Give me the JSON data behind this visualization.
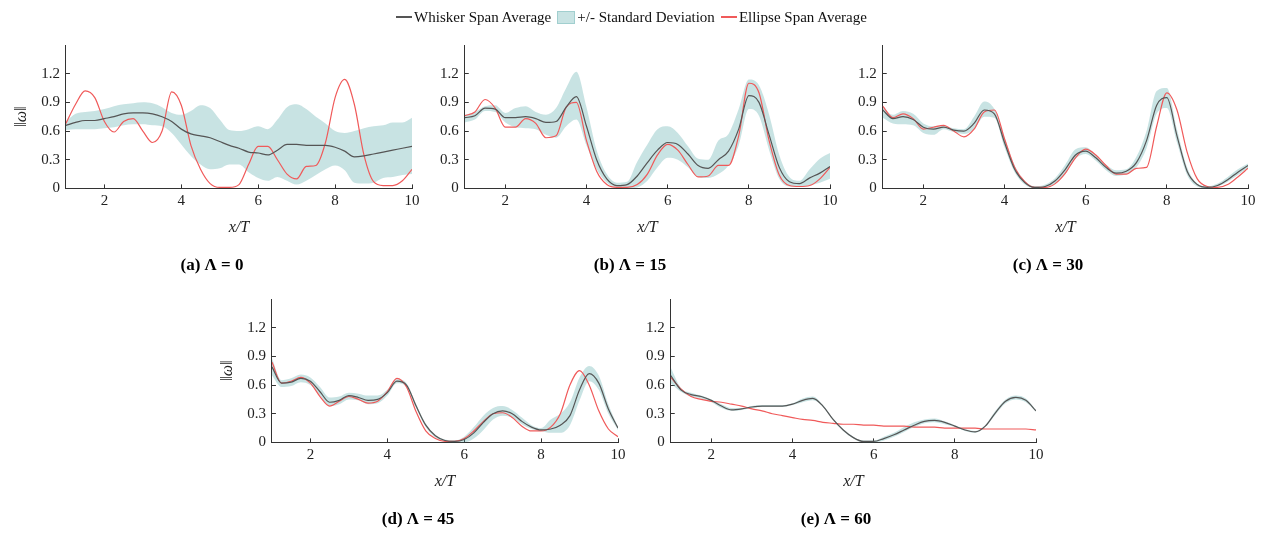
{
  "chart_data": [
    {
      "type": "line",
      "title": "(a) Λ = 0",
      "xlabel": "x/T",
      "ylabel": "‖ω‖",
      "legend": "top",
      "xlim": [
        1,
        10
      ],
      "ylim": [
        0,
        1.5
      ],
      "xticks": [
        2,
        4,
        6,
        8,
        10
      ],
      "yticks": [
        0,
        0.3,
        0.6,
        0.9,
        1.2
      ],
      "x": [
        1,
        1.25,
        1.5,
        1.75,
        2,
        2.25,
        2.5,
        2.75,
        3,
        3.25,
        3.5,
        3.75,
        4,
        4.25,
        4.5,
        4.75,
        5,
        5.25,
        5.5,
        5.75,
        6,
        6.25,
        6.5,
        6.75,
        7,
        7.25,
        7.5,
        7.75,
        8,
        8.25,
        8.5,
        8.75,
        9,
        9.25,
        9.5,
        9.75,
        10
      ],
      "series": [
        {
          "name": "Whisker Span Average",
          "type": "line",
          "color": "#555555",
          "values": [
            0.66,
            0.69,
            0.71,
            0.71,
            0.73,
            0.75,
            0.78,
            0.79,
            0.79,
            0.78,
            0.75,
            0.7,
            0.62,
            0.57,
            0.55,
            0.53,
            0.49,
            0.45,
            0.42,
            0.38,
            0.37,
            0.35,
            0.4,
            0.46,
            0.46,
            0.45,
            0.45,
            0.45,
            0.43,
            0.39,
            0.33,
            0.34,
            0.36,
            0.38,
            0.4,
            0.42,
            0.44
          ],
          "lower": [
            0.61,
            0.62,
            0.62,
            0.62,
            0.63,
            0.64,
            0.66,
            0.67,
            0.67,
            0.66,
            0.65,
            0.58,
            0.46,
            0.34,
            0.25,
            0.2,
            0.21,
            0.25,
            0.25,
            0.17,
            0.11,
            0.08,
            0.12,
            0.08,
            0.04,
            0.08,
            0.14,
            0.2,
            0.24,
            0.19,
            0.06,
            0.05,
            0.06,
            0.11,
            0.12,
            0.14,
            0.15
          ],
          "upper": [
            0.7,
            0.78,
            0.8,
            0.81,
            0.83,
            0.86,
            0.88,
            0.89,
            0.9,
            0.89,
            0.85,
            0.79,
            0.77,
            0.81,
            0.87,
            0.84,
            0.72,
            0.61,
            0.6,
            0.62,
            0.65,
            0.62,
            0.72,
            0.85,
            0.88,
            0.83,
            0.75,
            0.68,
            0.6,
            0.58,
            0.6,
            0.63,
            0.65,
            0.66,
            0.69,
            0.69,
            0.74
          ]
        },
        {
          "name": "+/- Standard Deviation",
          "type": "area",
          "color": "#4aa3a3",
          "values": [
            null,
            null,
            null,
            null,
            null,
            null,
            null,
            null,
            null,
            null,
            null,
            null,
            null,
            null,
            null,
            null,
            null,
            null,
            null,
            null,
            null,
            null,
            null,
            null,
            null,
            null,
            null,
            null,
            null,
            null,
            null,
            null,
            null,
            null,
            null,
            null,
            null
          ]
        },
        {
          "name": "Ellipse Span Average",
          "type": "line",
          "color": "#f05a5a",
          "values": [
            0.68,
            0.88,
            1.02,
            0.95,
            0.7,
            0.59,
            0.7,
            0.73,
            0.6,
            0.48,
            0.6,
            1.01,
            0.87,
            0.45,
            0.2,
            0.05,
            0.01,
            0.01,
            0.04,
            0.25,
            0.44,
            0.44,
            0.3,
            0.15,
            0.1,
            0.23,
            0.24,
            0.48,
            0.95,
            1.14,
            0.88,
            0.35,
            0.07,
            0.03,
            0.03,
            0.08,
            0.2
          ]
        }
      ]
    },
    {
      "type": "line",
      "title": "(b) Λ = 15",
      "xlabel": "x/T",
      "xlim": [
        1,
        10
      ],
      "ylim": [
        0,
        1.5
      ],
      "xticks": [
        2,
        4,
        6,
        8,
        10
      ],
      "yticks": [
        0,
        0.3,
        0.6,
        0.9,
        1.2
      ],
      "x": [
        1,
        1.25,
        1.5,
        1.75,
        2,
        2.25,
        2.5,
        2.75,
        3,
        3.25,
        3.5,
        3.75,
        4,
        4.25,
        4.5,
        4.75,
        5,
        5.25,
        5.5,
        5.75,
        6,
        6.25,
        6.5,
        6.75,
        7,
        7.25,
        7.5,
        7.75,
        8,
        8.25,
        8.5,
        8.75,
        9,
        9.25,
        9.5,
        9.75,
        10
      ],
      "series": [
        {
          "type": "line",
          "color": "#555555",
          "values": [
            0.74,
            0.76,
            0.84,
            0.83,
            0.74,
            0.74,
            0.75,
            0.73,
            0.69,
            0.7,
            0.85,
            0.96,
            0.65,
            0.3,
            0.1,
            0.03,
            0.04,
            0.13,
            0.27,
            0.4,
            0.48,
            0.46,
            0.36,
            0.24,
            0.21,
            0.3,
            0.39,
            0.62,
            0.97,
            0.9,
            0.56,
            0.22,
            0.07,
            0.05,
            0.11,
            0.16,
            0.23
          ],
          "lower": [
            0.69,
            0.72,
            0.81,
            0.8,
            0.69,
            0.64,
            0.63,
            0.62,
            0.56,
            0.53,
            0.65,
            0.72,
            0.45,
            0.2,
            0.06,
            0.01,
            0.0,
            0.01,
            0.08,
            0.22,
            0.32,
            0.3,
            0.22,
            0.12,
            0.11,
            0.15,
            0.24,
            0.45,
            0.83,
            0.76,
            0.4,
            0.1,
            0.02,
            0.02,
            0.03,
            0.06,
            0.1
          ],
          "upper": [
            0.77,
            0.8,
            0.86,
            0.87,
            0.79,
            0.84,
            0.86,
            0.8,
            0.77,
            0.84,
            1.05,
            1.22,
            0.85,
            0.4,
            0.15,
            0.06,
            0.07,
            0.28,
            0.46,
            0.62,
            0.65,
            0.58,
            0.44,
            0.31,
            0.3,
            0.5,
            0.57,
            0.83,
            1.14,
            1.08,
            0.77,
            0.35,
            0.12,
            0.08,
            0.2,
            0.31,
            0.37
          ]
        },
        {
          "type": "area",
          "color": "#4aa3a3",
          "values": [
            null,
            null,
            null,
            null,
            null,
            null,
            null,
            null,
            null,
            null,
            null,
            null,
            null,
            null,
            null,
            null,
            null,
            null,
            null,
            null,
            null,
            null,
            null,
            null,
            null,
            null,
            null,
            null,
            null,
            null,
            null,
            null,
            null,
            null,
            null,
            null,
            null
          ]
        },
        {
          "type": "line",
          "color": "#f05a5a",
          "values": [
            0.76,
            0.8,
            0.93,
            0.84,
            0.64,
            0.64,
            0.73,
            0.68,
            0.53,
            0.55,
            0.85,
            0.9,
            0.5,
            0.18,
            0.04,
            0.01,
            0.01,
            0.04,
            0.15,
            0.35,
            0.46,
            0.4,
            0.25,
            0.12,
            0.13,
            0.24,
            0.24,
            0.55,
            1.1,
            1.0,
            0.5,
            0.14,
            0.03,
            0.02,
            0.03,
            0.1,
            0.22
          ]
        }
      ]
    },
    {
      "type": "line",
      "title": "(c) Λ = 30",
      "xlabel": "x/T",
      "xlim": [
        1,
        10
      ],
      "ylim": [
        0,
        1.5
      ],
      "xticks": [
        2,
        4,
        6,
        8,
        10
      ],
      "yticks": [
        0,
        0.3,
        0.6,
        0.9,
        1.2
      ],
      "x": [
        1,
        1.25,
        1.5,
        1.75,
        2,
        2.25,
        2.5,
        2.75,
        3,
        3.25,
        3.5,
        3.75,
        4,
        4.25,
        4.5,
        4.75,
        5,
        5.25,
        5.5,
        5.75,
        6,
        6.25,
        6.5,
        6.75,
        7,
        7.25,
        7.5,
        7.75,
        8,
        8.25,
        8.5,
        8.75,
        9,
        9.25,
        9.5,
        9.75,
        10
      ],
      "series": [
        {
          "type": "line",
          "color": "#555555",
          "values": [
            0.82,
            0.73,
            0.75,
            0.72,
            0.64,
            0.62,
            0.64,
            0.61,
            0.6,
            0.68,
            0.82,
            0.78,
            0.48,
            0.2,
            0.06,
            0.01,
            0.02,
            0.08,
            0.2,
            0.35,
            0.39,
            0.32,
            0.22,
            0.16,
            0.18,
            0.27,
            0.5,
            0.87,
            0.95,
            0.55,
            0.18,
            0.04,
            0.01,
            0.03,
            0.09,
            0.17,
            0.24
          ],
          "lower": [
            0.74,
            0.68,
            0.67,
            0.66,
            0.58,
            0.56,
            0.62,
            0.59,
            0.57,
            0.62,
            0.75,
            0.74,
            0.43,
            0.17,
            0.04,
            0.0,
            0.01,
            0.05,
            0.15,
            0.31,
            0.36,
            0.29,
            0.19,
            0.13,
            0.15,
            0.22,
            0.42,
            0.78,
            0.84,
            0.48,
            0.14,
            0.02,
            0.0,
            0.02,
            0.07,
            0.14,
            0.21
          ],
          "upper": [
            0.86,
            0.77,
            0.81,
            0.78,
            0.68,
            0.65,
            0.65,
            0.63,
            0.62,
            0.75,
            0.91,
            0.83,
            0.53,
            0.24,
            0.08,
            0.02,
            0.04,
            0.11,
            0.25,
            0.41,
            0.43,
            0.35,
            0.25,
            0.19,
            0.2,
            0.33,
            0.6,
            1.02,
            1.05,
            0.62,
            0.22,
            0.05,
            0.02,
            0.05,
            0.12,
            0.2,
            0.26
          ]
        },
        {
          "type": "area",
          "color": "#4aa3a3",
          "values": [
            null,
            null,
            null,
            null,
            null,
            null,
            null,
            null,
            null,
            null,
            null,
            null,
            null,
            null,
            null,
            null,
            null,
            null,
            null,
            null,
            null,
            null,
            null,
            null,
            null,
            null,
            null,
            null,
            null,
            null,
            null,
            null,
            null,
            null,
            null,
            null,
            null
          ]
        },
        {
          "type": "line",
          "color": "#f05a5a",
          "values": [
            0.86,
            0.74,
            0.78,
            0.73,
            0.62,
            0.64,
            0.66,
            0.6,
            0.54,
            0.62,
            0.8,
            0.82,
            0.52,
            0.22,
            0.07,
            0.01,
            0.01,
            0.05,
            0.16,
            0.32,
            0.41,
            0.35,
            0.24,
            0.15,
            0.15,
            0.21,
            0.22,
            0.65,
            1.0,
            0.82,
            0.38,
            0.1,
            0.02,
            0.01,
            0.04,
            0.12,
            0.21
          ]
        }
      ]
    },
    {
      "type": "line",
      "title": "(d) Λ = 45",
      "xlabel": "x/T",
      "ylabel": "‖ω‖",
      "xlim": [
        1,
        10
      ],
      "ylim": [
        0,
        1.5
      ],
      "xticks": [
        2,
        4,
        6,
        8,
        10
      ],
      "yticks": [
        0,
        0.3,
        0.6,
        0.9,
        1.2
      ],
      "x": [
        1,
        1.25,
        1.5,
        1.75,
        2,
        2.25,
        2.5,
        2.75,
        3,
        3.25,
        3.5,
        3.75,
        4,
        4.25,
        4.5,
        4.75,
        5,
        5.25,
        5.5,
        5.75,
        6,
        6.25,
        6.5,
        6.75,
        7,
        7.25,
        7.5,
        7.75,
        8,
        8.25,
        8.5,
        8.75,
        9,
        9.25,
        9.5,
        9.75,
        10
      ],
      "series": [
        {
          "type": "line",
          "color": "#555555",
          "values": [
            0.79,
            0.62,
            0.63,
            0.67,
            0.64,
            0.53,
            0.42,
            0.44,
            0.49,
            0.47,
            0.44,
            0.45,
            0.52,
            0.64,
            0.6,
            0.38,
            0.18,
            0.07,
            0.02,
            0.01,
            0.03,
            0.1,
            0.21,
            0.3,
            0.33,
            0.3,
            0.22,
            0.16,
            0.13,
            0.14,
            0.18,
            0.28,
            0.55,
            0.72,
            0.62,
            0.35,
            0.15
          ],
          "lower": [
            0.7,
            0.58,
            0.59,
            0.63,
            0.6,
            0.49,
            0.38,
            0.4,
            0.45,
            0.44,
            0.4,
            0.41,
            0.49,
            0.62,
            0.58,
            0.36,
            0.16,
            0.05,
            0.01,
            0.0,
            0.0,
            0.04,
            0.13,
            0.24,
            0.28,
            0.26,
            0.19,
            0.14,
            0.12,
            0.1,
            0.1,
            0.18,
            0.44,
            0.64,
            0.55,
            0.3,
            0.13
          ],
          "upper": [
            0.88,
            0.65,
            0.67,
            0.71,
            0.68,
            0.58,
            0.47,
            0.48,
            0.52,
            0.51,
            0.49,
            0.49,
            0.55,
            0.66,
            0.62,
            0.4,
            0.2,
            0.08,
            0.03,
            0.02,
            0.06,
            0.16,
            0.28,
            0.36,
            0.38,
            0.34,
            0.26,
            0.18,
            0.15,
            0.24,
            0.3,
            0.42,
            0.68,
            0.8,
            0.7,
            0.4,
            0.16
          ]
        },
        {
          "type": "area",
          "color": "#4aa3a3",
          "values": [
            null,
            null,
            null,
            null,
            null,
            null,
            null,
            null,
            null,
            null,
            null,
            null,
            null,
            null,
            null,
            null,
            null,
            null,
            null,
            null,
            null,
            null,
            null,
            null,
            null,
            null,
            null,
            null,
            null,
            null,
            null,
            null,
            null,
            null,
            null,
            null,
            null
          ]
        },
        {
          "type": "line",
          "color": "#f05a5a",
          "values": [
            0.84,
            0.62,
            0.64,
            0.68,
            0.62,
            0.48,
            0.38,
            0.43,
            0.48,
            0.45,
            0.41,
            0.43,
            0.53,
            0.67,
            0.58,
            0.32,
            0.12,
            0.04,
            0.01,
            0.01,
            0.04,
            0.12,
            0.22,
            0.3,
            0.31,
            0.26,
            0.17,
            0.12,
            0.12,
            0.16,
            0.3,
            0.6,
            0.75,
            0.6,
            0.33,
            0.14,
            0.06
          ]
        }
      ]
    },
    {
      "type": "line",
      "title": "(e) Λ = 60",
      "xlabel": "x/T",
      "xlim": [
        1,
        10
      ],
      "ylim": [
        0,
        1.5
      ],
      "xticks": [
        2,
        4,
        6,
        8,
        10
      ],
      "yticks": [
        0,
        0.3,
        0.6,
        0.9,
        1.2
      ],
      "x": [
        1,
        1.25,
        1.5,
        1.75,
        2,
        2.25,
        2.5,
        2.75,
        3,
        3.25,
        3.5,
        3.75,
        4,
        4.25,
        4.5,
        4.75,
        5,
        5.25,
        5.5,
        5.75,
        6,
        6.25,
        6.5,
        6.75,
        7,
        7.25,
        7.5,
        7.75,
        8,
        8.25,
        8.5,
        8.75,
        9,
        9.25,
        9.5,
        9.75,
        10
      ],
      "series": [
        {
          "type": "line",
          "color": "#555555",
          "values": [
            0.7,
            0.55,
            0.5,
            0.48,
            0.44,
            0.38,
            0.34,
            0.35,
            0.37,
            0.38,
            0.38,
            0.38,
            0.4,
            0.44,
            0.46,
            0.38,
            0.24,
            0.13,
            0.05,
            0.01,
            0.01,
            0.04,
            0.08,
            0.13,
            0.18,
            0.22,
            0.23,
            0.21,
            0.17,
            0.13,
            0.11,
            0.17,
            0.31,
            0.43,
            0.47,
            0.44,
            0.33
          ],
          "lower": [
            0.62,
            0.53,
            0.48,
            0.46,
            0.42,
            0.36,
            0.33,
            0.34,
            0.36,
            0.37,
            0.37,
            0.37,
            0.39,
            0.42,
            0.44,
            0.37,
            0.23,
            0.12,
            0.04,
            0.0,
            0.0,
            0.02,
            0.06,
            0.11,
            0.16,
            0.2,
            0.21,
            0.19,
            0.16,
            0.12,
            0.1,
            0.16,
            0.29,
            0.41,
            0.45,
            0.42,
            0.32
          ],
          "upper": [
            0.78,
            0.57,
            0.52,
            0.49,
            0.45,
            0.4,
            0.36,
            0.36,
            0.38,
            0.39,
            0.39,
            0.39,
            0.41,
            0.46,
            0.48,
            0.39,
            0.25,
            0.14,
            0.06,
            0.02,
            0.02,
            0.06,
            0.1,
            0.16,
            0.21,
            0.24,
            0.25,
            0.22,
            0.18,
            0.14,
            0.12,
            0.18,
            0.33,
            0.45,
            0.49,
            0.46,
            0.34
          ]
        },
        {
          "type": "area",
          "color": "#4aa3a3",
          "values": [
            null,
            null,
            null,
            null,
            null,
            null,
            null,
            null,
            null,
            null,
            null,
            null,
            null,
            null,
            null,
            null,
            null,
            null,
            null,
            null,
            null,
            null,
            null,
            null,
            null,
            null,
            null,
            null,
            null,
            null,
            null,
            null,
            null,
            null,
            null,
            null,
            null
          ]
        },
        {
          "type": "line",
          "color": "#f05a5a",
          "values": [
            0.68,
            0.56,
            0.48,
            0.45,
            0.43,
            0.42,
            0.4,
            0.38,
            0.35,
            0.33,
            0.3,
            0.28,
            0.26,
            0.24,
            0.23,
            0.21,
            0.2,
            0.19,
            0.19,
            0.18,
            0.18,
            0.17,
            0.17,
            0.17,
            0.16,
            0.16,
            0.16,
            0.15,
            0.15,
            0.15,
            0.15,
            0.14,
            0.14,
            0.14,
            0.14,
            0.14,
            0.13
          ]
        }
      ]
    }
  ]
}
